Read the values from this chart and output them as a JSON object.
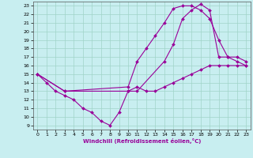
{
  "xlabel": "Windchill (Refroidissement éolien,°C)",
  "bg_color": "#c8eef0",
  "grid_color": "#a0d4c8",
  "line_color": "#990099",
  "xlim": [
    -0.5,
    23.5
  ],
  "ylim": [
    8.5,
    23.5
  ],
  "xticks": [
    0,
    1,
    2,
    3,
    4,
    5,
    6,
    7,
    8,
    9,
    10,
    11,
    12,
    13,
    14,
    15,
    16,
    17,
    18,
    19,
    20,
    21,
    22,
    23
  ],
  "yticks": [
    9,
    10,
    11,
    12,
    13,
    14,
    15,
    16,
    17,
    18,
    19,
    20,
    21,
    22,
    23
  ],
  "line1_x": [
    0,
    1,
    2,
    3,
    4,
    5,
    6,
    7,
    8,
    9,
    10,
    11,
    12,
    13,
    14,
    15,
    16,
    17,
    18,
    19,
    20,
    21,
    22,
    23
  ],
  "line1_y": [
    15,
    14,
    13,
    12.5,
    12,
    11,
    10.5,
    9.5,
    9,
    10.5,
    13,
    13.5,
    13,
    13,
    13.5,
    14,
    14.5,
    15,
    15.5,
    16,
    16,
    16,
    16,
    16
  ],
  "line2_x": [
    0,
    3,
    10,
    11,
    12,
    13,
    14,
    15,
    16,
    17,
    18,
    19,
    20,
    21,
    22,
    23
  ],
  "line2_y": [
    15,
    13,
    13.5,
    16.5,
    18,
    19.5,
    21,
    22.7,
    23,
    23,
    22.5,
    21.5,
    19,
    17,
    17,
    16.5
  ],
  "line3_x": [
    0,
    3,
    10,
    11,
    14,
    15,
    16,
    17,
    18,
    19,
    20,
    21,
    22,
    23
  ],
  "line3_y": [
    15,
    13,
    13,
    13,
    16.5,
    18.5,
    21.5,
    22.5,
    23.2,
    22.5,
    17,
    17,
    16.5,
    16
  ]
}
